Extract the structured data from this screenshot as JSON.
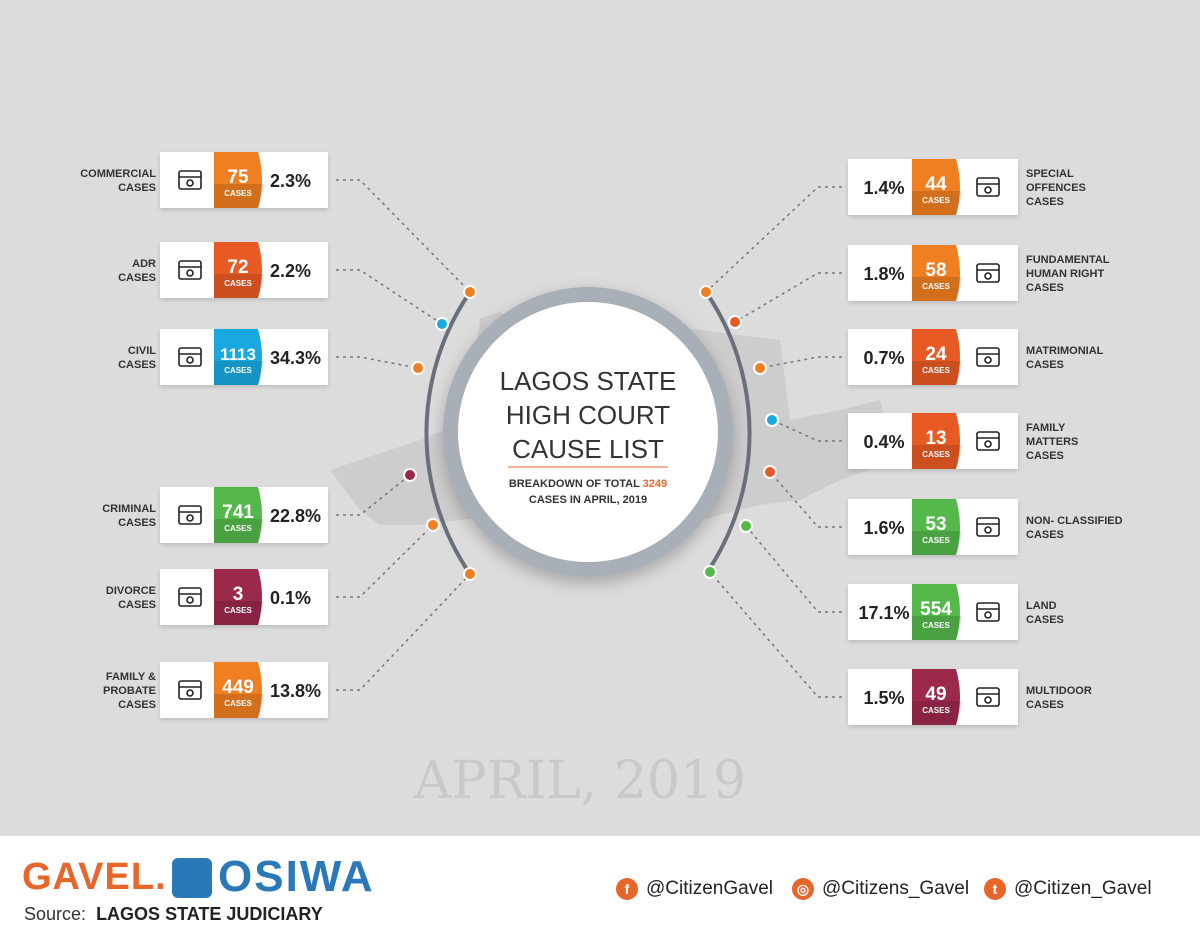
{
  "title": {
    "line1": "LAGOS STATE",
    "line2": "HIGH COURT",
    "line3": "CAUSE LIST",
    "sub_pre": "BREAKDOWN OF TOTAL ",
    "total": "3249",
    "sub_line2": "CASES IN APRIL, 2019"
  },
  "watermark": "APRIL, 2019",
  "colors": {
    "orange": "#f07f22",
    "red_orange": "#e85a24",
    "blue": "#19a9e0",
    "green": "#55b84a",
    "maroon": "#9b2a4a",
    "dark": "#333333"
  },
  "chart_data": {
    "type": "table",
    "total_cases": 3249,
    "period": "APRIL, 2019",
    "cases_label": "CASES",
    "left": [
      {
        "label": [
          "COMMERCIAL",
          "CASES"
        ],
        "value": 75,
        "percent": "2.3%",
        "color": "orange",
        "icon": "signpost-dollar-icon"
      },
      {
        "label": [
          "ADR",
          "CASES"
        ],
        "value": 72,
        "percent": "2.2%",
        "color": "red_orange",
        "icon": "mediation-icon"
      },
      {
        "label": [
          "CIVIL",
          "CASES"
        ],
        "value": 1113,
        "percent": "34.3%",
        "color": "blue",
        "icon": "scales-icon"
      },
      {
        "label": [
          "CRIMINAL",
          "CASES"
        ],
        "value": 741,
        "percent": "22.8%",
        "color": "green",
        "icon": "running-thief-icon"
      },
      {
        "label": [
          "DIVORCE",
          "CASES"
        ],
        "value": 3,
        "percent": "0.1%",
        "color": "maroon",
        "icon": "broken-heart-icon"
      },
      {
        "label": [
          "FAMILY &",
          "PROBATE",
          "CASES"
        ],
        "value": 449,
        "percent": "13.8%",
        "color": "orange",
        "icon": "ballot-box-icon"
      }
    ],
    "right": [
      {
        "label": [
          "SPECIAL",
          "OFFENCES",
          "CASES"
        ],
        "value": 44,
        "percent": "1.4%",
        "color": "orange",
        "icon": "package-icon"
      },
      {
        "label": [
          "FUNDAMENTAL",
          "HUMAN RIGHT",
          "CASES"
        ],
        "value": 58,
        "percent": "1.8%",
        "color": "orange",
        "icon": "equality-icon"
      },
      {
        "label": [
          "MATRIMONIAL",
          "CASES"
        ],
        "value": 24,
        "percent": "0.7%",
        "color": "red_orange",
        "icon": "couple-icon"
      },
      {
        "label": [
          "FAMILY",
          "MATTERS",
          "CASES"
        ],
        "value": 13,
        "percent": "0.4%",
        "color": "red_orange",
        "icon": "family-house-icon"
      },
      {
        "label": [
          "NON- CLASSIFIED",
          "CASES"
        ],
        "value": 53,
        "percent": "1.6%",
        "color": "green",
        "icon": "open-box-icon"
      },
      {
        "label": [
          "LAND",
          "CASES"
        ],
        "value": 554,
        "percent": "17.1%",
        "color": "green",
        "icon": "land-map-icon"
      },
      {
        "label": [
          "MULTIDOOR",
          "CASES"
        ],
        "value": 49,
        "percent": "1.5%",
        "color": "maroon",
        "icon": "door-icon"
      }
    ]
  },
  "footer": {
    "gavel": "GAVEL.",
    "osiwa": "OSIWA",
    "source_label": "Source:",
    "source_value": "LAGOS STATE JUDICIARY",
    "facebook": "@CitizenGavel",
    "instagram": "@Citizens_Gavel",
    "twitter": "@Citizen_Gavel"
  }
}
